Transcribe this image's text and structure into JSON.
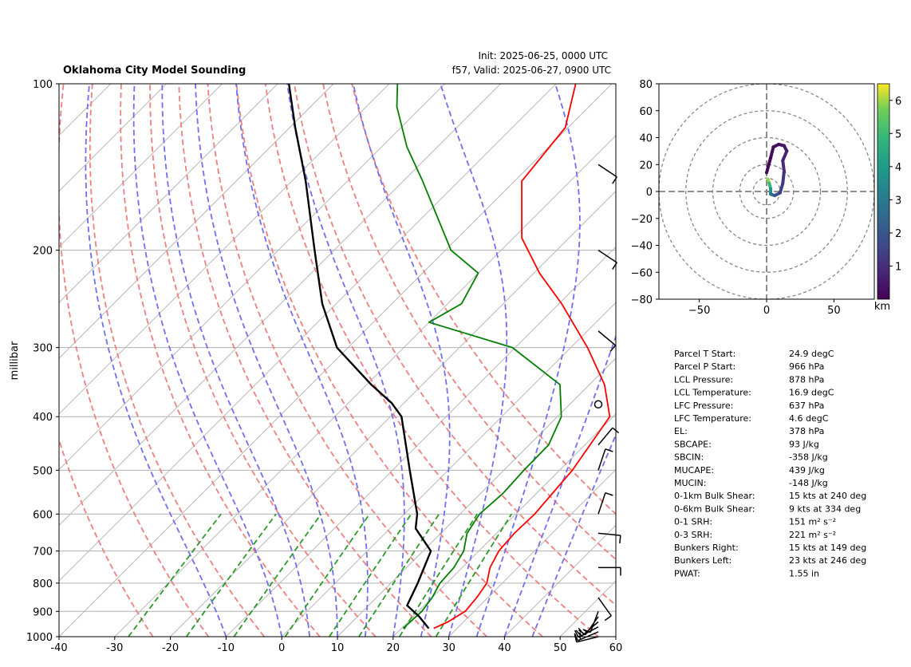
{
  "header": {
    "title": "Oklahoma City Model Sounding",
    "init": "Init: 2025-06-25, 0000 UTC",
    "valid": "f57, Valid: 2025-06-27, 0900 UTC"
  },
  "chart_data": [
    {
      "type": "skew-t",
      "ylabel": "millibar",
      "x_ticks": [
        -40,
        -30,
        -20,
        -10,
        0,
        10,
        20,
        30,
        40,
        50,
        60
      ],
      "x_range": [
        -40,
        60
      ],
      "y_ticks": [
        100,
        200,
        300,
        400,
        500,
        600,
        700,
        800,
        900,
        1000
      ],
      "y_range": [
        1000,
        100
      ],
      "y_scale": "log",
      "temperature": {
        "color": "#ff0000",
        "points": [
          [
            966,
            25.8
          ],
          [
            940,
            27.2
          ],
          [
            900,
            28.4
          ],
          [
            850,
            28.0
          ],
          [
            800,
            27.2
          ],
          [
            750,
            25.0
          ],
          [
            700,
            23.6
          ],
          [
            650,
            23.2
          ],
          [
            600,
            23.4
          ],
          [
            500,
            22.3
          ],
          [
            400,
            19.4
          ],
          [
            350,
            12.7
          ],
          [
            300,
            3.0
          ],
          [
            250,
            -9.5
          ],
          [
            220,
            -19.0
          ],
          [
            190,
            -28.5
          ],
          [
            150,
            -38.7
          ],
          [
            120,
            -40.5
          ],
          [
            100,
            -46.5
          ]
        ]
      },
      "dewpoint": {
        "color": "#008000",
        "points": [
          [
            966,
            20.3
          ],
          [
            900,
            20.6
          ],
          [
            850,
            20.0
          ],
          [
            800,
            18.8
          ],
          [
            750,
            18.5
          ],
          [
            700,
            17.3
          ],
          [
            650,
            14.7
          ],
          [
            600,
            13.5
          ],
          [
            550,
            14.0
          ],
          [
            500,
            13.6
          ],
          [
            450,
            13.5
          ],
          [
            400,
            10.7
          ],
          [
            350,
            4.7
          ],
          [
            300,
            -10.5
          ],
          [
            270,
            -30.0
          ],
          [
            250,
            -27.5
          ],
          [
            220,
            -30.0
          ],
          [
            200,
            -39.0
          ],
          [
            150,
            -56.5
          ],
          [
            130,
            -65.5
          ],
          [
            110,
            -74.5
          ],
          [
            100,
            -78.5
          ]
        ]
      },
      "parcel": {
        "color": "#000000",
        "points": [
          [
            966,
            24.9
          ],
          [
            920,
            21.1
          ],
          [
            878,
            16.9
          ],
          [
            800,
            14.8
          ],
          [
            700,
            11.4
          ],
          [
            637,
            4.6
          ],
          [
            600,
            2.3
          ],
          [
            500,
            -6.9
          ],
          [
            400,
            -18.0
          ],
          [
            378,
            -22.2
          ],
          [
            350,
            -29.2
          ],
          [
            300,
            -42.0
          ],
          [
            250,
            -52.5
          ],
          [
            200,
            -63.5
          ],
          [
            150,
            -77.5
          ],
          [
            120,
            -89.0
          ],
          [
            100,
            -98.0
          ]
        ]
      },
      "dry_adiabats_theta_K": [
        250,
        260,
        270,
        280,
        290,
        300,
        310,
        320,
        330,
        340,
        350,
        360
      ],
      "moist_adiabats_start_C": [
        -10,
        0,
        5,
        10,
        15,
        20,
        25,
        30,
        35,
        40,
        45
      ],
      "mixing_ratio_lines_gkg": [
        0.4,
        1,
        2,
        4,
        7,
        10,
        16,
        24
      ],
      "wind_barbs": [
        {
          "p": 1000,
          "u": 12,
          "v": 3
        },
        {
          "p": 980,
          "u": 14,
          "v": 6
        },
        {
          "p": 960,
          "u": 15,
          "v": 8
        },
        {
          "p": 940,
          "u": 14,
          "v": 12
        },
        {
          "p": 920,
          "u": 10,
          "v": 14
        },
        {
          "p": 900,
          "u": 3,
          "v": 8
        },
        {
          "p": 850,
          "u": -5,
          "v": 7
        },
        {
          "p": 750,
          "u": -10,
          "v": 0
        },
        {
          "p": 650,
          "u": -10,
          "v": 1
        },
        {
          "p": 600,
          "u": -3,
          "v": -9
        },
        {
          "p": 500,
          "u": -3,
          "v": -9
        },
        {
          "p": 450,
          "u": -5,
          "v": -6
        },
        {
          "p": 380,
          "u": 0,
          "v": 0
        },
        {
          "p": 280,
          "u": -6,
          "v": 5
        },
        {
          "p": 200,
          "u": -9,
          "v": 6
        },
        {
          "p": 140,
          "u": -9,
          "v": 6
        }
      ]
    },
    {
      "type": "hodograph",
      "x_ticks": [
        -50,
        0,
        50
      ],
      "y_ticks": [
        -80,
        -60,
        -40,
        -20,
        0,
        20,
        40,
        60,
        80
      ],
      "x_range": [
        -80,
        80
      ],
      "y_range": [
        -80,
        80
      ],
      "range_rings": [
        10,
        20,
        40,
        60,
        80
      ],
      "colorbar": {
        "ticks": [
          1,
          2,
          3,
          4,
          5,
          6
        ],
        "range": [
          0,
          6.5
        ],
        "label": "km"
      },
      "trace": [
        {
          "h": 6.3,
          "u": 1,
          "v": 9
        },
        {
          "h": 5.5,
          "u": 2,
          "v": 6
        },
        {
          "h": 4.2,
          "u": 3,
          "v": 2
        },
        {
          "h": 3.0,
          "u": 3,
          "v": -2
        },
        {
          "h": 2.2,
          "u": 6,
          "v": -3
        },
        {
          "h": 1.6,
          "u": 10,
          "v": -1
        },
        {
          "h": 1.3,
          "u": 12,
          "v": 6
        },
        {
          "h": 1.0,
          "u": 13,
          "v": 15
        },
        {
          "h": 0.8,
          "u": 12,
          "v": 23
        },
        {
          "h": 0.6,
          "u": 15,
          "v": 30
        },
        {
          "h": 0.45,
          "u": 13,
          "v": 34
        },
        {
          "h": 0.35,
          "u": 9,
          "v": 35
        },
        {
          "h": 0.25,
          "u": 5,
          "v": 33
        },
        {
          "h": 0.15,
          "u": 3,
          "v": 25
        },
        {
          "h": 0.05,
          "u": 0,
          "v": 14
        }
      ]
    }
  ],
  "params": [
    {
      "label": "Parcel T Start:",
      "value": "24.9 degC"
    },
    {
      "label": "Parcel P Start:",
      "value": "966 hPa"
    },
    {
      "label": "LCL Pressure:",
      "value": "878 hPa"
    },
    {
      "label": "LCL Temperature:",
      "value": "16.9 degC"
    },
    {
      "label": "LFC Pressure:",
      "value": "637 hPa"
    },
    {
      "label": "LFC Temperature:",
      "value": "4.6 degC"
    },
    {
      "label": "EL:",
      "value": "378 hPa"
    },
    {
      "label": "SBCAPE:",
      "value": "93 J/kg"
    },
    {
      "label": "SBCIN:",
      "value": "-358 J/kg"
    },
    {
      "label": "MUCAPE:",
      "value": "439 J/kg"
    },
    {
      "label": "MUCIN:",
      "value": "-148 J/kg"
    },
    {
      "label": "0-1km Bulk Shear:",
      "value": "15 kts at 240 deg"
    },
    {
      "label": "0-6km Bulk Shear:",
      "value": "9 kts at 334 deg"
    },
    {
      "label": "0-1 SRH:",
      "value": "151 m² s⁻²"
    },
    {
      "label": "0-3 SRH:",
      "value": "221 m² s⁻²"
    },
    {
      "label": "Bunkers Right:",
      "value": "15 kts at 149 deg"
    },
    {
      "label": "Bunkers Left:",
      "value": "23 kts at 246 deg"
    },
    {
      "label": "PWAT:",
      "value": "1.55 in"
    }
  ]
}
